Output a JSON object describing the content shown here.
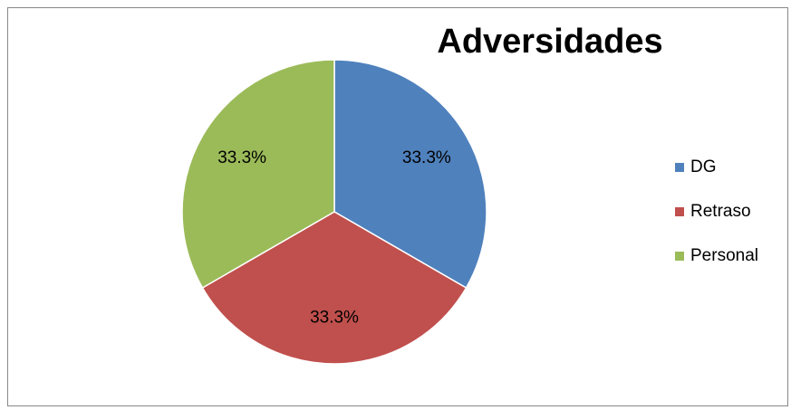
{
  "chart_data": {
    "type": "pie",
    "title": "Adversidades",
    "categories": [
      "DG",
      "Retraso",
      "Personal"
    ],
    "values": [
      33.3,
      33.3,
      33.3
    ],
    "value_labels": [
      "33.3%",
      "33.3%",
      "33.3%"
    ],
    "colors": [
      "#4f81bd",
      "#c0504d",
      "#9bbb59"
    ],
    "legend": "right"
  }
}
